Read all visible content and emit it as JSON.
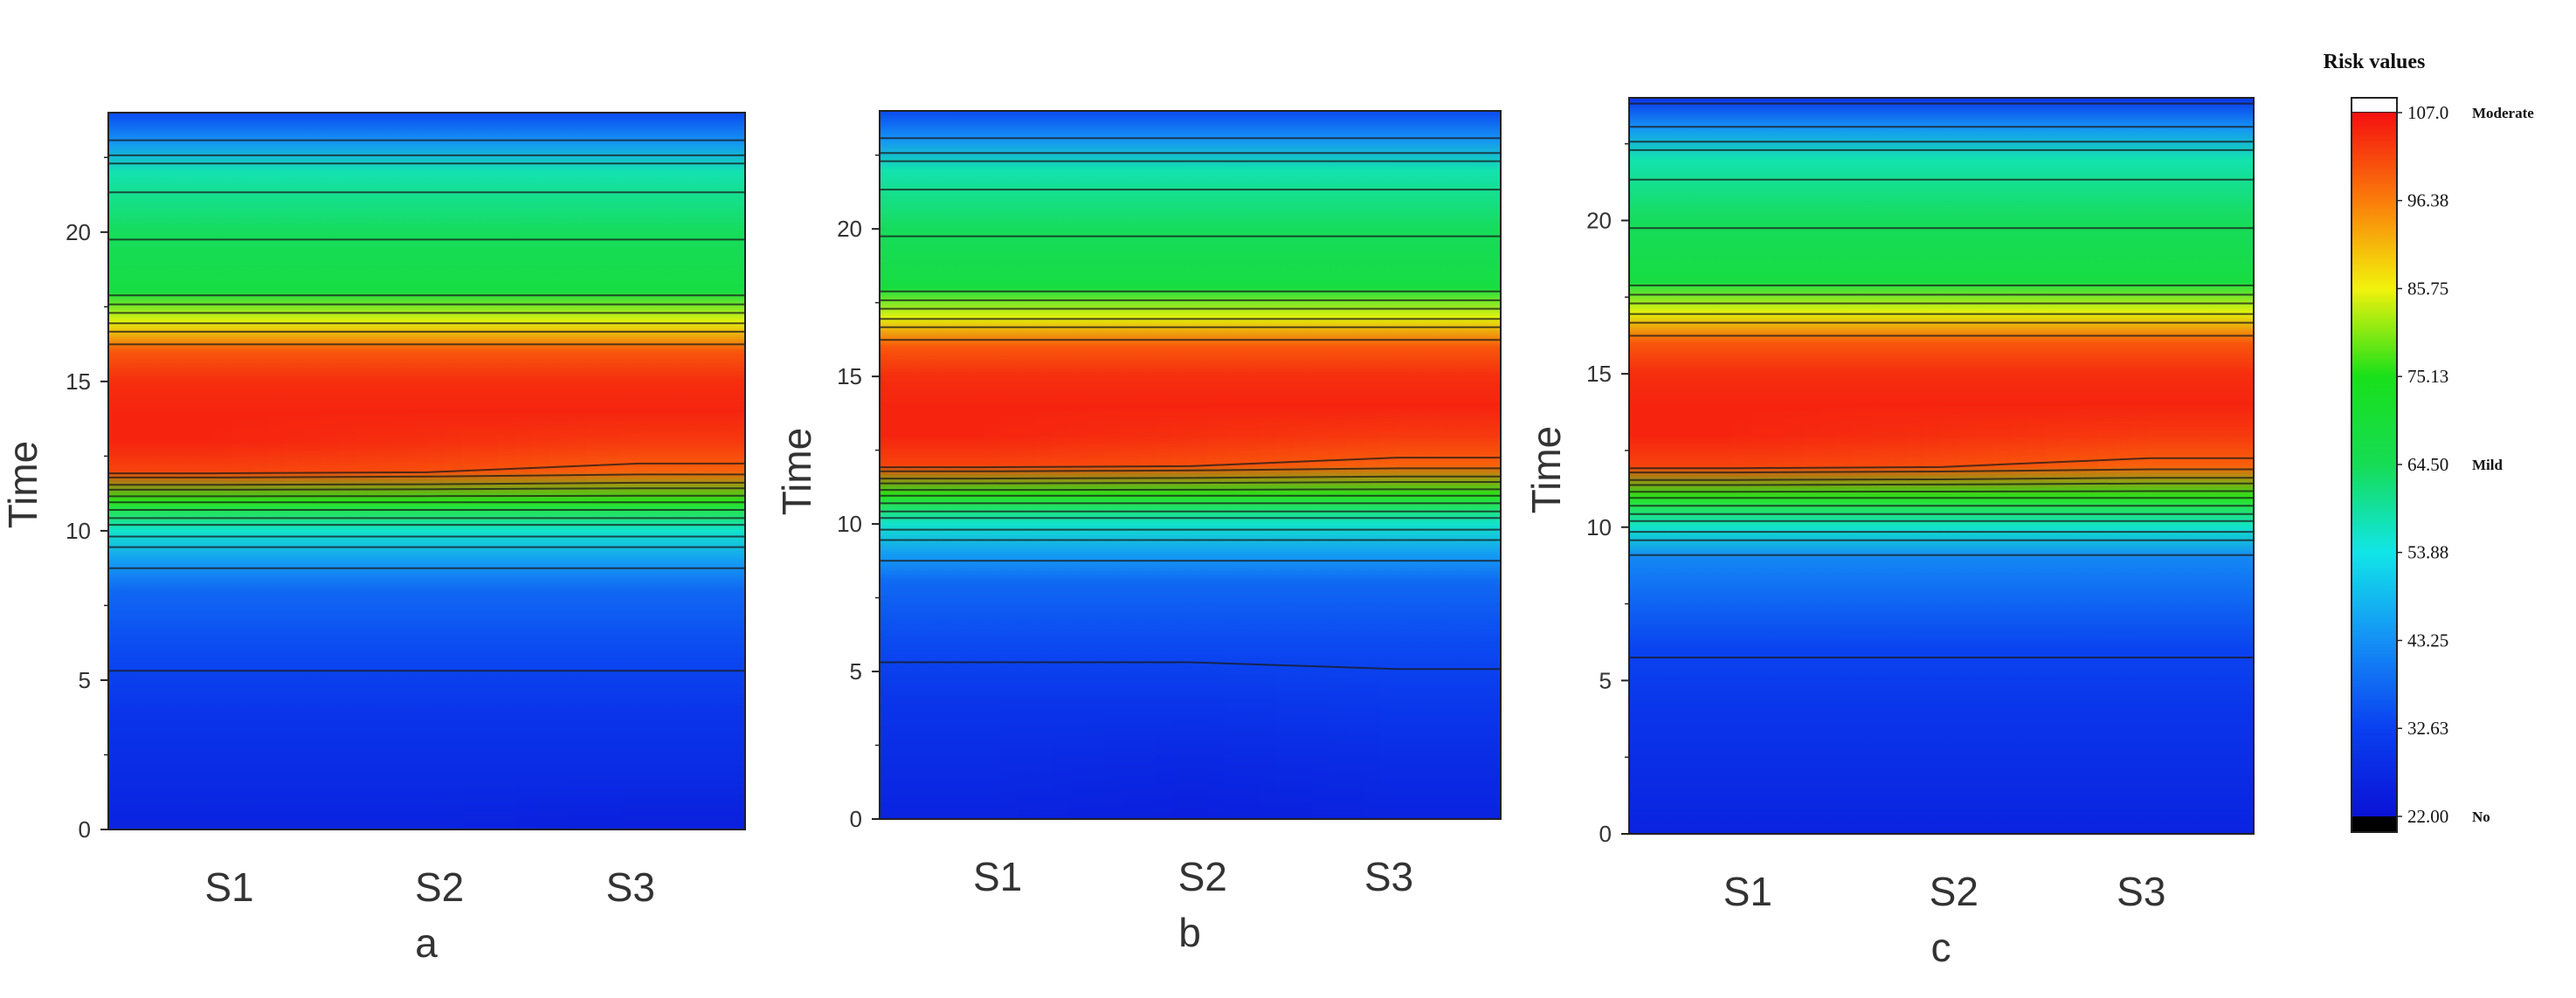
{
  "chart_data": [
    {
      "type": "heatmap",
      "panel_label": "a",
      "categories": [
        "S1",
        "S2",
        "S3"
      ],
      "ylabel": "Time",
      "ylim": [
        0,
        24
      ],
      "yticks": [
        "0",
        "5",
        "10",
        "15",
        "20"
      ],
      "grid": false,
      "rows": [
        {
          "time": 0,
          "values": [
            26,
            26,
            25
          ]
        },
        {
          "time": 2,
          "values": [
            28,
            28,
            28
          ]
        },
        {
          "time": 4,
          "values": [
            30,
            30,
            30
          ]
        },
        {
          "time": 6,
          "values": [
            34,
            34,
            34
          ]
        },
        {
          "time": 8,
          "values": [
            38,
            38,
            38
          ]
        },
        {
          "time": 9,
          "values": [
            45,
            45,
            45
          ]
        },
        {
          "time": 10,
          "values": [
            56,
            56,
            56
          ]
        },
        {
          "time": 11,
          "values": [
            76,
            76,
            76
          ]
        },
        {
          "time": 12,
          "values": [
            102,
            101,
            99
          ]
        },
        {
          "time": 13,
          "values": [
            105,
            104,
            103
          ]
        },
        {
          "time": 14,
          "values": [
            105,
            105,
            105
          ]
        },
        {
          "time": 15,
          "values": [
            104,
            104,
            104
          ]
        },
        {
          "time": 16,
          "values": [
            100,
            100,
            100
          ]
        },
        {
          "time": 17,
          "values": [
            85,
            85,
            85
          ]
        },
        {
          "time": 18,
          "values": [
            68,
            68,
            68
          ]
        },
        {
          "time": 20,
          "values": [
            64,
            64,
            64
          ]
        },
        {
          "time": 22,
          "values": [
            58,
            58,
            58
          ]
        },
        {
          "time": 23,
          "values": [
            44,
            44,
            44
          ]
        },
        {
          "time": 24,
          "values": [
            34,
            34,
            34
          ]
        }
      ]
    },
    {
      "type": "heatmap",
      "panel_label": "b",
      "categories": [
        "S1",
        "S2",
        "S3"
      ],
      "ylabel": "Time",
      "ylim": [
        0,
        24
      ],
      "yticks": [
        "0",
        "5",
        "10",
        "15",
        "20"
      ],
      "grid": false,
      "rows": [
        {
          "time": 0,
          "values": [
            26,
            25,
            26
          ]
        },
        {
          "time": 2,
          "values": [
            28,
            27,
            28
          ]
        },
        {
          "time": 4,
          "values": [
            30,
            30,
            31
          ]
        },
        {
          "time": 6,
          "values": [
            34,
            34,
            34
          ]
        },
        {
          "time": 8,
          "values": [
            38,
            38,
            38
          ]
        },
        {
          "time": 9,
          "values": [
            45,
            45,
            45
          ]
        },
        {
          "time": 10,
          "values": [
            56,
            56,
            56
          ]
        },
        {
          "time": 11,
          "values": [
            76,
            76,
            76
          ]
        },
        {
          "time": 12,
          "values": [
            102,
            101,
            99
          ]
        },
        {
          "time": 13,
          "values": [
            105,
            104,
            103
          ]
        },
        {
          "time": 14,
          "values": [
            105,
            105,
            105
          ]
        },
        {
          "time": 15,
          "values": [
            104,
            104,
            104
          ]
        },
        {
          "time": 16,
          "values": [
            100,
            100,
            100
          ]
        },
        {
          "time": 17,
          "values": [
            85,
            85,
            85
          ]
        },
        {
          "time": 18,
          "values": [
            68,
            68,
            68
          ]
        },
        {
          "time": 20,
          "values": [
            64,
            64,
            64
          ]
        },
        {
          "time": 22,
          "values": [
            58,
            58,
            58
          ]
        },
        {
          "time": 23,
          "values": [
            44,
            44,
            44
          ]
        },
        {
          "time": 24,
          "values": [
            34,
            34,
            34
          ]
        }
      ]
    },
    {
      "type": "heatmap",
      "panel_label": "c",
      "categories": [
        "S1",
        "S2",
        "S3"
      ],
      "ylabel": "Time",
      "ylim": [
        0,
        24
      ],
      "yticks": [
        "0",
        "5",
        "10",
        "15",
        "20"
      ],
      "grid": false,
      "rows": [
        {
          "time": 0,
          "values": [
            26,
            26,
            26
          ]
        },
        {
          "time": 2,
          "values": [
            28,
            28,
            28
          ]
        },
        {
          "time": 4,
          "values": [
            30,
            30,
            30
          ]
        },
        {
          "time": 6,
          "values": [
            33,
            33,
            33
          ]
        },
        {
          "time": 7,
          "values": [
            36,
            36,
            36
          ]
        },
        {
          "time": 9,
          "values": [
            42,
            42,
            42
          ]
        },
        {
          "time": 10,
          "values": [
            56,
            56,
            56
          ]
        },
        {
          "time": 11,
          "values": [
            76,
            76,
            76
          ]
        },
        {
          "time": 12,
          "values": [
            102,
            101,
            99
          ]
        },
        {
          "time": 13,
          "values": [
            105,
            104,
            103
          ]
        },
        {
          "time": 14,
          "values": [
            105,
            105,
            105
          ]
        },
        {
          "time": 15,
          "values": [
            104,
            104,
            104
          ]
        },
        {
          "time": 16,
          "values": [
            100,
            100,
            100
          ]
        },
        {
          "time": 17,
          "values": [
            85,
            85,
            85
          ]
        },
        {
          "time": 18,
          "values": [
            68,
            68,
            68
          ]
        },
        {
          "time": 20,
          "values": [
            64,
            64,
            64
          ]
        },
        {
          "time": 22,
          "values": [
            58,
            58,
            58
          ]
        },
        {
          "time": 23,
          "values": [
            44,
            44,
            44
          ]
        },
        {
          "time": 24,
          "values": [
            30,
            30,
            30
          ]
        }
      ]
    }
  ],
  "colorbar": {
    "title": "Risk values",
    "min": 22.0,
    "max": 107.0,
    "ticks": [
      "107.0",
      "96.38",
      "85.75",
      "75.13",
      "64.50",
      "53.88",
      "43.25",
      "32.63",
      "22.00"
    ],
    "levels": [
      {
        "label": "Moderate",
        "value": 107.0
      },
      {
        "label": "Mild",
        "value": 64.5
      },
      {
        "label": "No",
        "value": 22.0
      }
    ],
    "under_color": "#000000",
    "over_color": "#ffffff",
    "palette": [
      "#0a12d6",
      "#0a40f0",
      "#1590f5",
      "#11e5e8",
      "#16dc55",
      "#19e01a",
      "#f2f20c",
      "#fa7c0a",
      "#f51010"
    ]
  }
}
